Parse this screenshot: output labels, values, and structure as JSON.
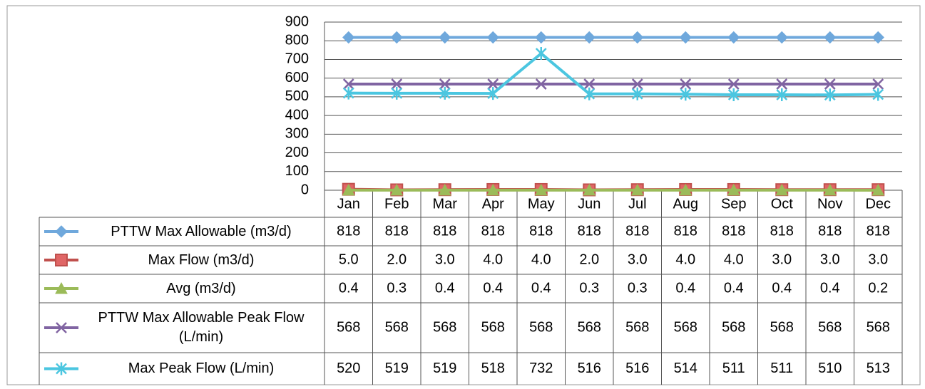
{
  "chart_data": {
    "type": "line",
    "categories": [
      "Jan",
      "Feb",
      "Mar",
      "Apr",
      "May",
      "Jun",
      "Jul",
      "Aug",
      "Sep",
      "Oct",
      "Nov",
      "Dec"
    ],
    "ylim": [
      0,
      900
    ],
    "yticks": [
      0,
      100,
      200,
      300,
      400,
      500,
      600,
      700,
      800,
      900
    ],
    "grid": true,
    "series": [
      {
        "name": "PTTW Max Allowable (m3/d)",
        "color": "#6fa8dc",
        "marker": "diamond",
        "values": [
          818,
          818,
          818,
          818,
          818,
          818,
          818,
          818,
          818,
          818,
          818,
          818
        ]
      },
      {
        "name": "Max Flow (m3/d)",
        "color": "#c0504d",
        "marker": "square",
        "values": [
          5,
          2,
          3,
          4,
          4,
          2,
          3,
          4,
          4,
          3,
          3,
          3
        ],
        "value_labels": [
          "5.0",
          "2.0",
          "3.0",
          "4.0",
          "4.0",
          "2.0",
          "3.0",
          "4.0",
          "4.0",
          "3.0",
          "3.0",
          "3.0"
        ]
      },
      {
        "name": "Avg (m3/d)",
        "color": "#9bbb59",
        "marker": "triangle",
        "values": [
          0.4,
          0.3,
          0.4,
          0.4,
          0.4,
          0.3,
          0.3,
          0.4,
          0.4,
          0.4,
          0.4,
          0.2
        ]
      },
      {
        "name": "PTTW Max Allowable Peak Flow (L/min)",
        "color": "#8064a2",
        "marker": "x",
        "values": [
          568,
          568,
          568,
          568,
          568,
          568,
          568,
          568,
          568,
          568,
          568,
          568
        ]
      },
      {
        "name": "Max Peak Flow (L/min)",
        "color": "#4bc6e0",
        "marker": "star",
        "values": [
          520,
          519,
          519,
          518,
          732,
          516,
          516,
          514,
          511,
          511,
          510,
          513
        ]
      }
    ]
  }
}
